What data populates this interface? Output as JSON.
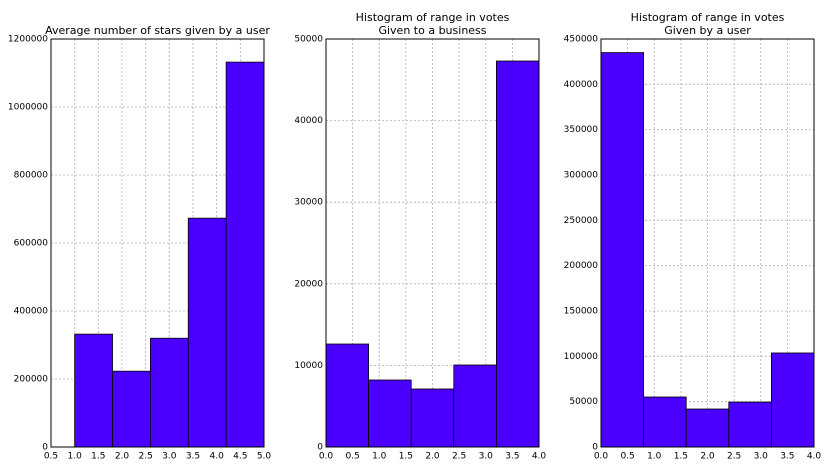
{
  "chart_data": [
    {
      "type": "histogram",
      "title": [
        "Average number of stars given by a user"
      ],
      "bins": [
        1.0,
        1.8,
        2.6,
        3.4,
        4.2,
        5.0
      ],
      "values": [
        332000,
        223000,
        320000,
        673000,
        1132000
      ],
      "color": "#4b00ff",
      "xlim": [
        0.5,
        5.0
      ],
      "xticks": [
        0.5,
        {
          "value": 1,
          "label": "1.0"
        },
        1.5,
        {
          "value": 2,
          "label": "2.0"
        },
        2.5,
        {
          "value": 3,
          "label": "3.0"
        },
        3.5,
        {
          "value": 4,
          "label": "4.0"
        },
        4.5,
        {
          "value": 5,
          "label": "5.0"
        }
      ],
      "ylim": [
        0,
        1200000
      ],
      "yticks": [
        0,
        200000,
        400000,
        600000,
        800000,
        1000000,
        1200000
      ],
      "grid": true
    },
    {
      "type": "histogram",
      "title": [
        "Histogram of range in votes",
        "Given to a business"
      ],
      "bins": [
        0,
        0.8,
        1.6,
        2.4,
        3.2,
        4.0
      ],
      "values": [
        12620,
        8210,
        7110,
        10050,
        47300
      ],
      "color": "#4b00ff",
      "xlim": [
        0,
        4.0
      ],
      "xticks": [
        {
          "value": 0,
          "label": "0.0"
        },
        0.5,
        {
          "value": 1,
          "label": "1.0"
        },
        1.5,
        {
          "value": 2,
          "label": "2.0"
        },
        2.5,
        {
          "value": 3,
          "label": "3.0"
        },
        3.5,
        {
          "value": 4,
          "label": "4.0"
        }
      ],
      "ylim": [
        0,
        50000
      ],
      "yticks": [
        0,
        10000,
        20000,
        30000,
        40000,
        50000
      ],
      "grid": true
    },
    {
      "type": "histogram",
      "title": [
        "Histogram of range in votes",
        "Given by a user"
      ],
      "bins": [
        0,
        0.8,
        1.6,
        2.4,
        3.2,
        4.0
      ],
      "values": [
        435000,
        55150,
        41900,
        49600,
        103700
      ],
      "color": "#4b00ff",
      "xlim": [
        0,
        4.0
      ],
      "xticks": [
        {
          "value": 0,
          "label": "0.0"
        },
        0.5,
        {
          "value": 1,
          "label": "1.0"
        },
        1.5,
        {
          "value": 2,
          "label": "2.0"
        },
        2.5,
        {
          "value": 3,
          "label": "3.0"
        },
        3.5,
        {
          "value": 4,
          "label": "4.0"
        }
      ],
      "ylim": [
        0,
        450000
      ],
      "yticks": [
        0,
        50000,
        100000,
        150000,
        200000,
        250000,
        300000,
        350000,
        400000,
        450000
      ],
      "grid": true
    }
  ]
}
